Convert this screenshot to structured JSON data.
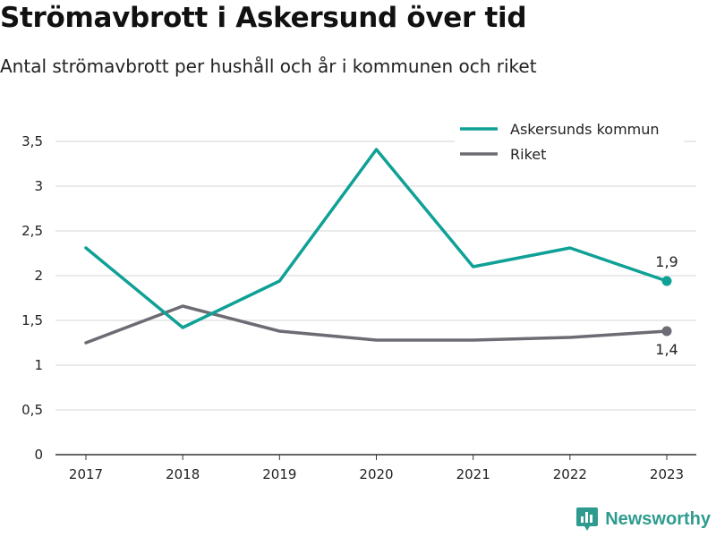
{
  "title": "Strömavbrott i Askersund över tid",
  "subtitle": "Antal strömavbrott per hushåll och år i kommunen och riket",
  "brand": {
    "name": "Newsworthy",
    "icon": "newsworthy-logo-icon",
    "color": "#2f9b8f"
  },
  "chart_data": {
    "type": "line",
    "x": [
      "2017",
      "2018",
      "2019",
      "2020",
      "2021",
      "2022",
      "2023"
    ],
    "series": [
      {
        "name": "Askersunds kommun",
        "color": "#0fa196",
        "values": [
          2.31,
          1.42,
          1.94,
          3.41,
          2.1,
          2.31,
          1.94
        ],
        "end_label": "1,9"
      },
      {
        "name": "Riket",
        "color": "#6d6c74",
        "values": [
          1.25,
          1.66,
          1.38,
          1.28,
          1.28,
          1.31,
          1.38
        ],
        "end_label": "1,4"
      }
    ],
    "y_ticks": [
      "0",
      "0,5",
      "1",
      "1,5",
      "2",
      "2,5",
      "3",
      "3,5"
    ],
    "ylim": [
      0,
      3.5
    ],
    "grid": true,
    "legend_position": "top-right"
  }
}
